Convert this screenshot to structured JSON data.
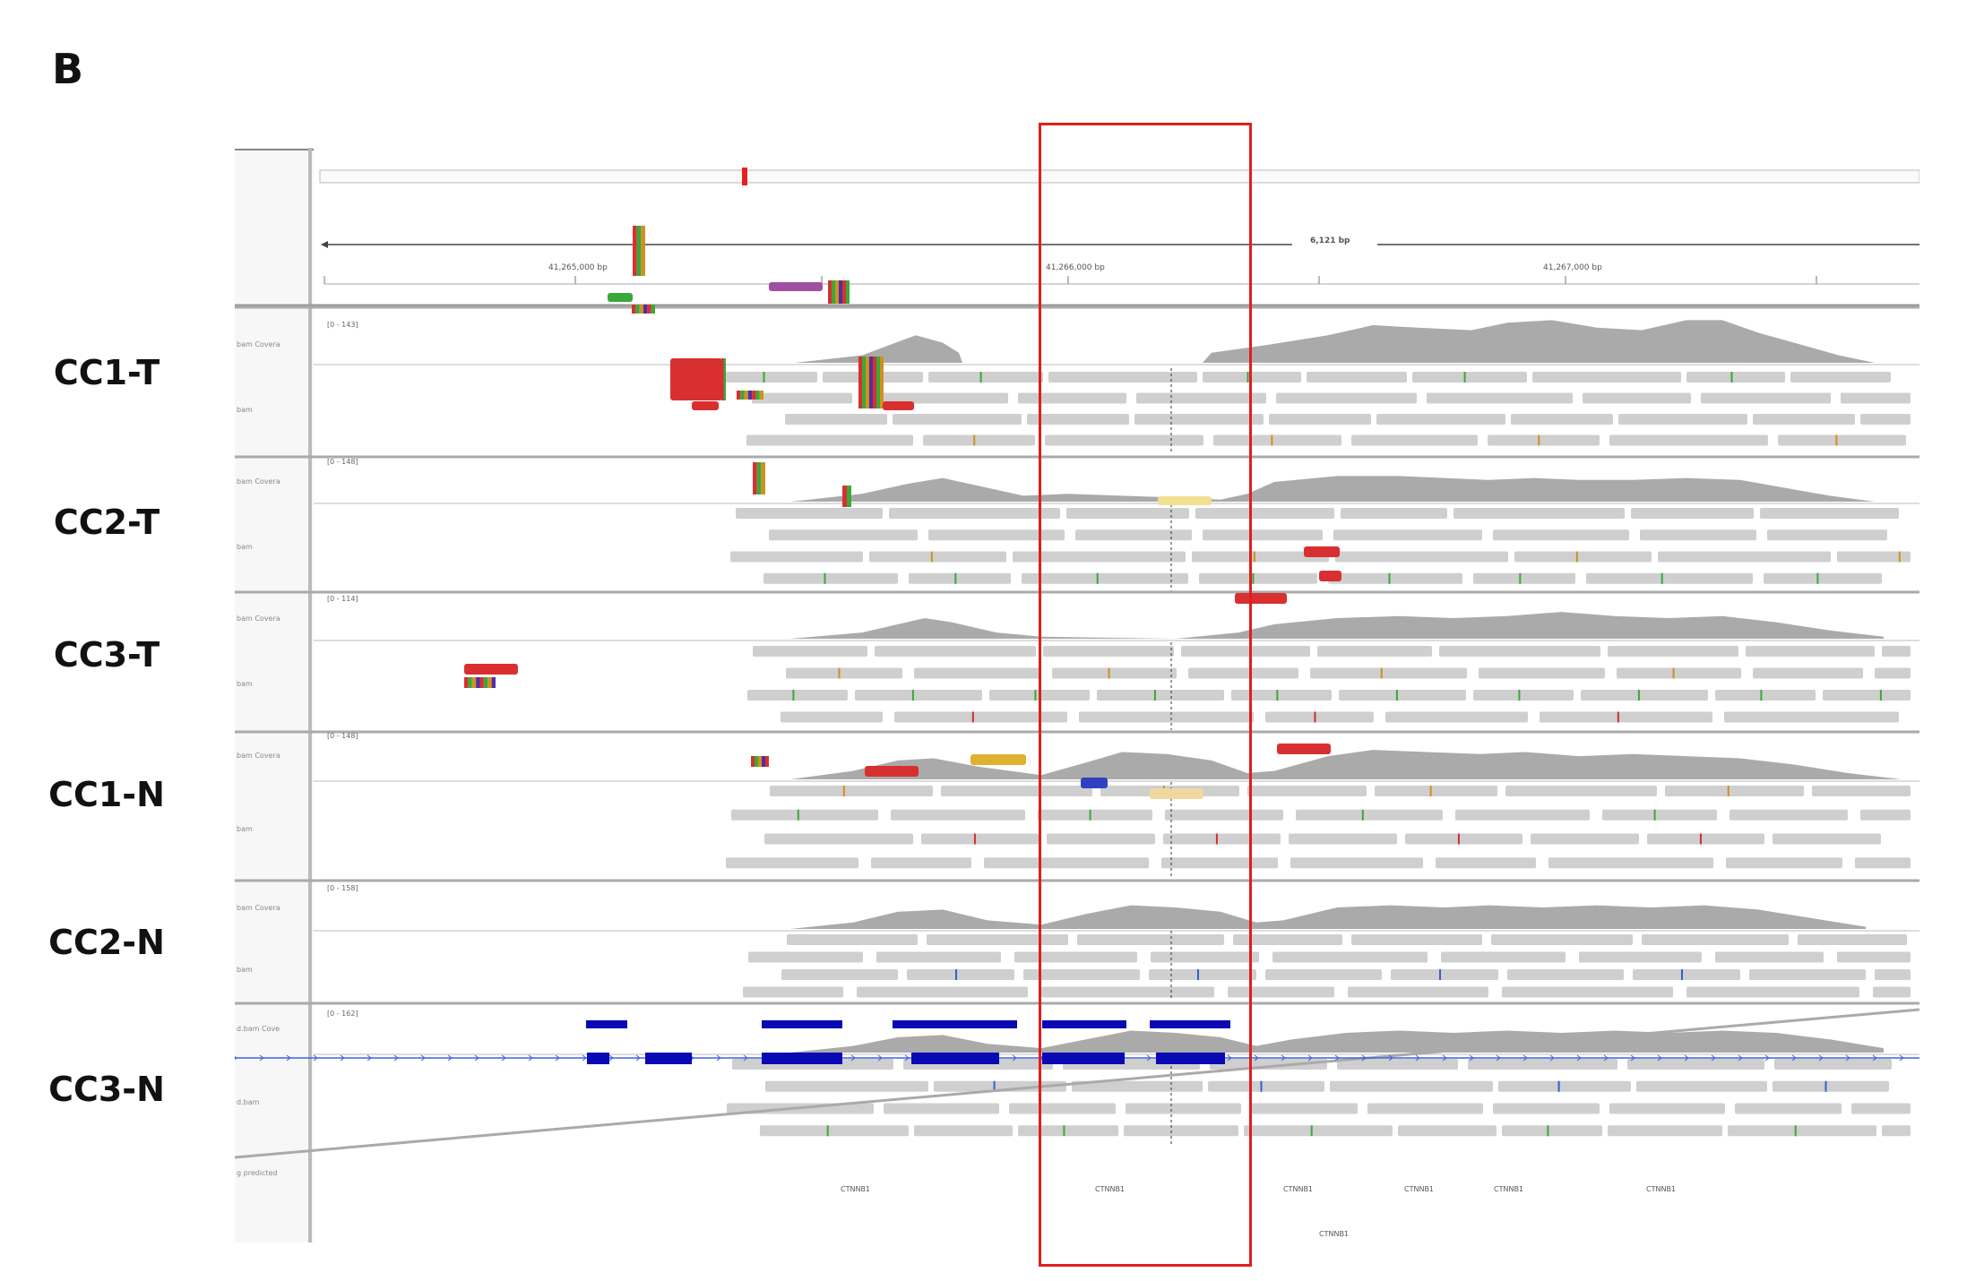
{
  "panel_letter": "B",
  "samples": [
    {
      "label": "CC1-T",
      "range": "[0 - 143]",
      "coverage_track": "bam Covera",
      "alignment_track": "bam"
    },
    {
      "label": "CC2-T",
      "range": "[0 - 148]",
      "coverage_track": "bam Covera",
      "alignment_track": "bam"
    },
    {
      "label": "CC3-T",
      "range": "[0 - 114]",
      "coverage_track": "bam Covera",
      "alignment_track": "bam"
    },
    {
      "label": "CC1-N",
      "range": "[0 - 148]",
      "coverage_track": "bam Covera",
      "alignment_track": "bam"
    },
    {
      "label": "CC2-N",
      "range": "[0 - 158]",
      "coverage_track": "bam Covera",
      "alignment_track": "bam"
    },
    {
      "label": "CC3-N",
      "range": "[0 - 162]",
      "coverage_track": "d.bam Cove",
      "alignment_track": "d.bam"
    }
  ],
  "ruler": {
    "span": "6,121 bp",
    "ticks": [
      "41,265,000 bp",
      "41,266,000 bp",
      "41,267,000 bp"
    ]
  },
  "gene_track": {
    "name": "g predicted",
    "gene": "CTNNB1",
    "feature_labels": [
      "CTNNB1",
      "CTNNB1",
      "CTNNB1",
      "CTNNB1",
      "CTNNB1",
      "CTNNB1",
      "CTNNB1"
    ]
  },
  "colors": {
    "highlight": "#e01e1e",
    "coverage": "#aaaaaa",
    "read": "#cfcfcf",
    "gene": "#0a0ab4",
    "chromosome_marker": "#e82020"
  }
}
